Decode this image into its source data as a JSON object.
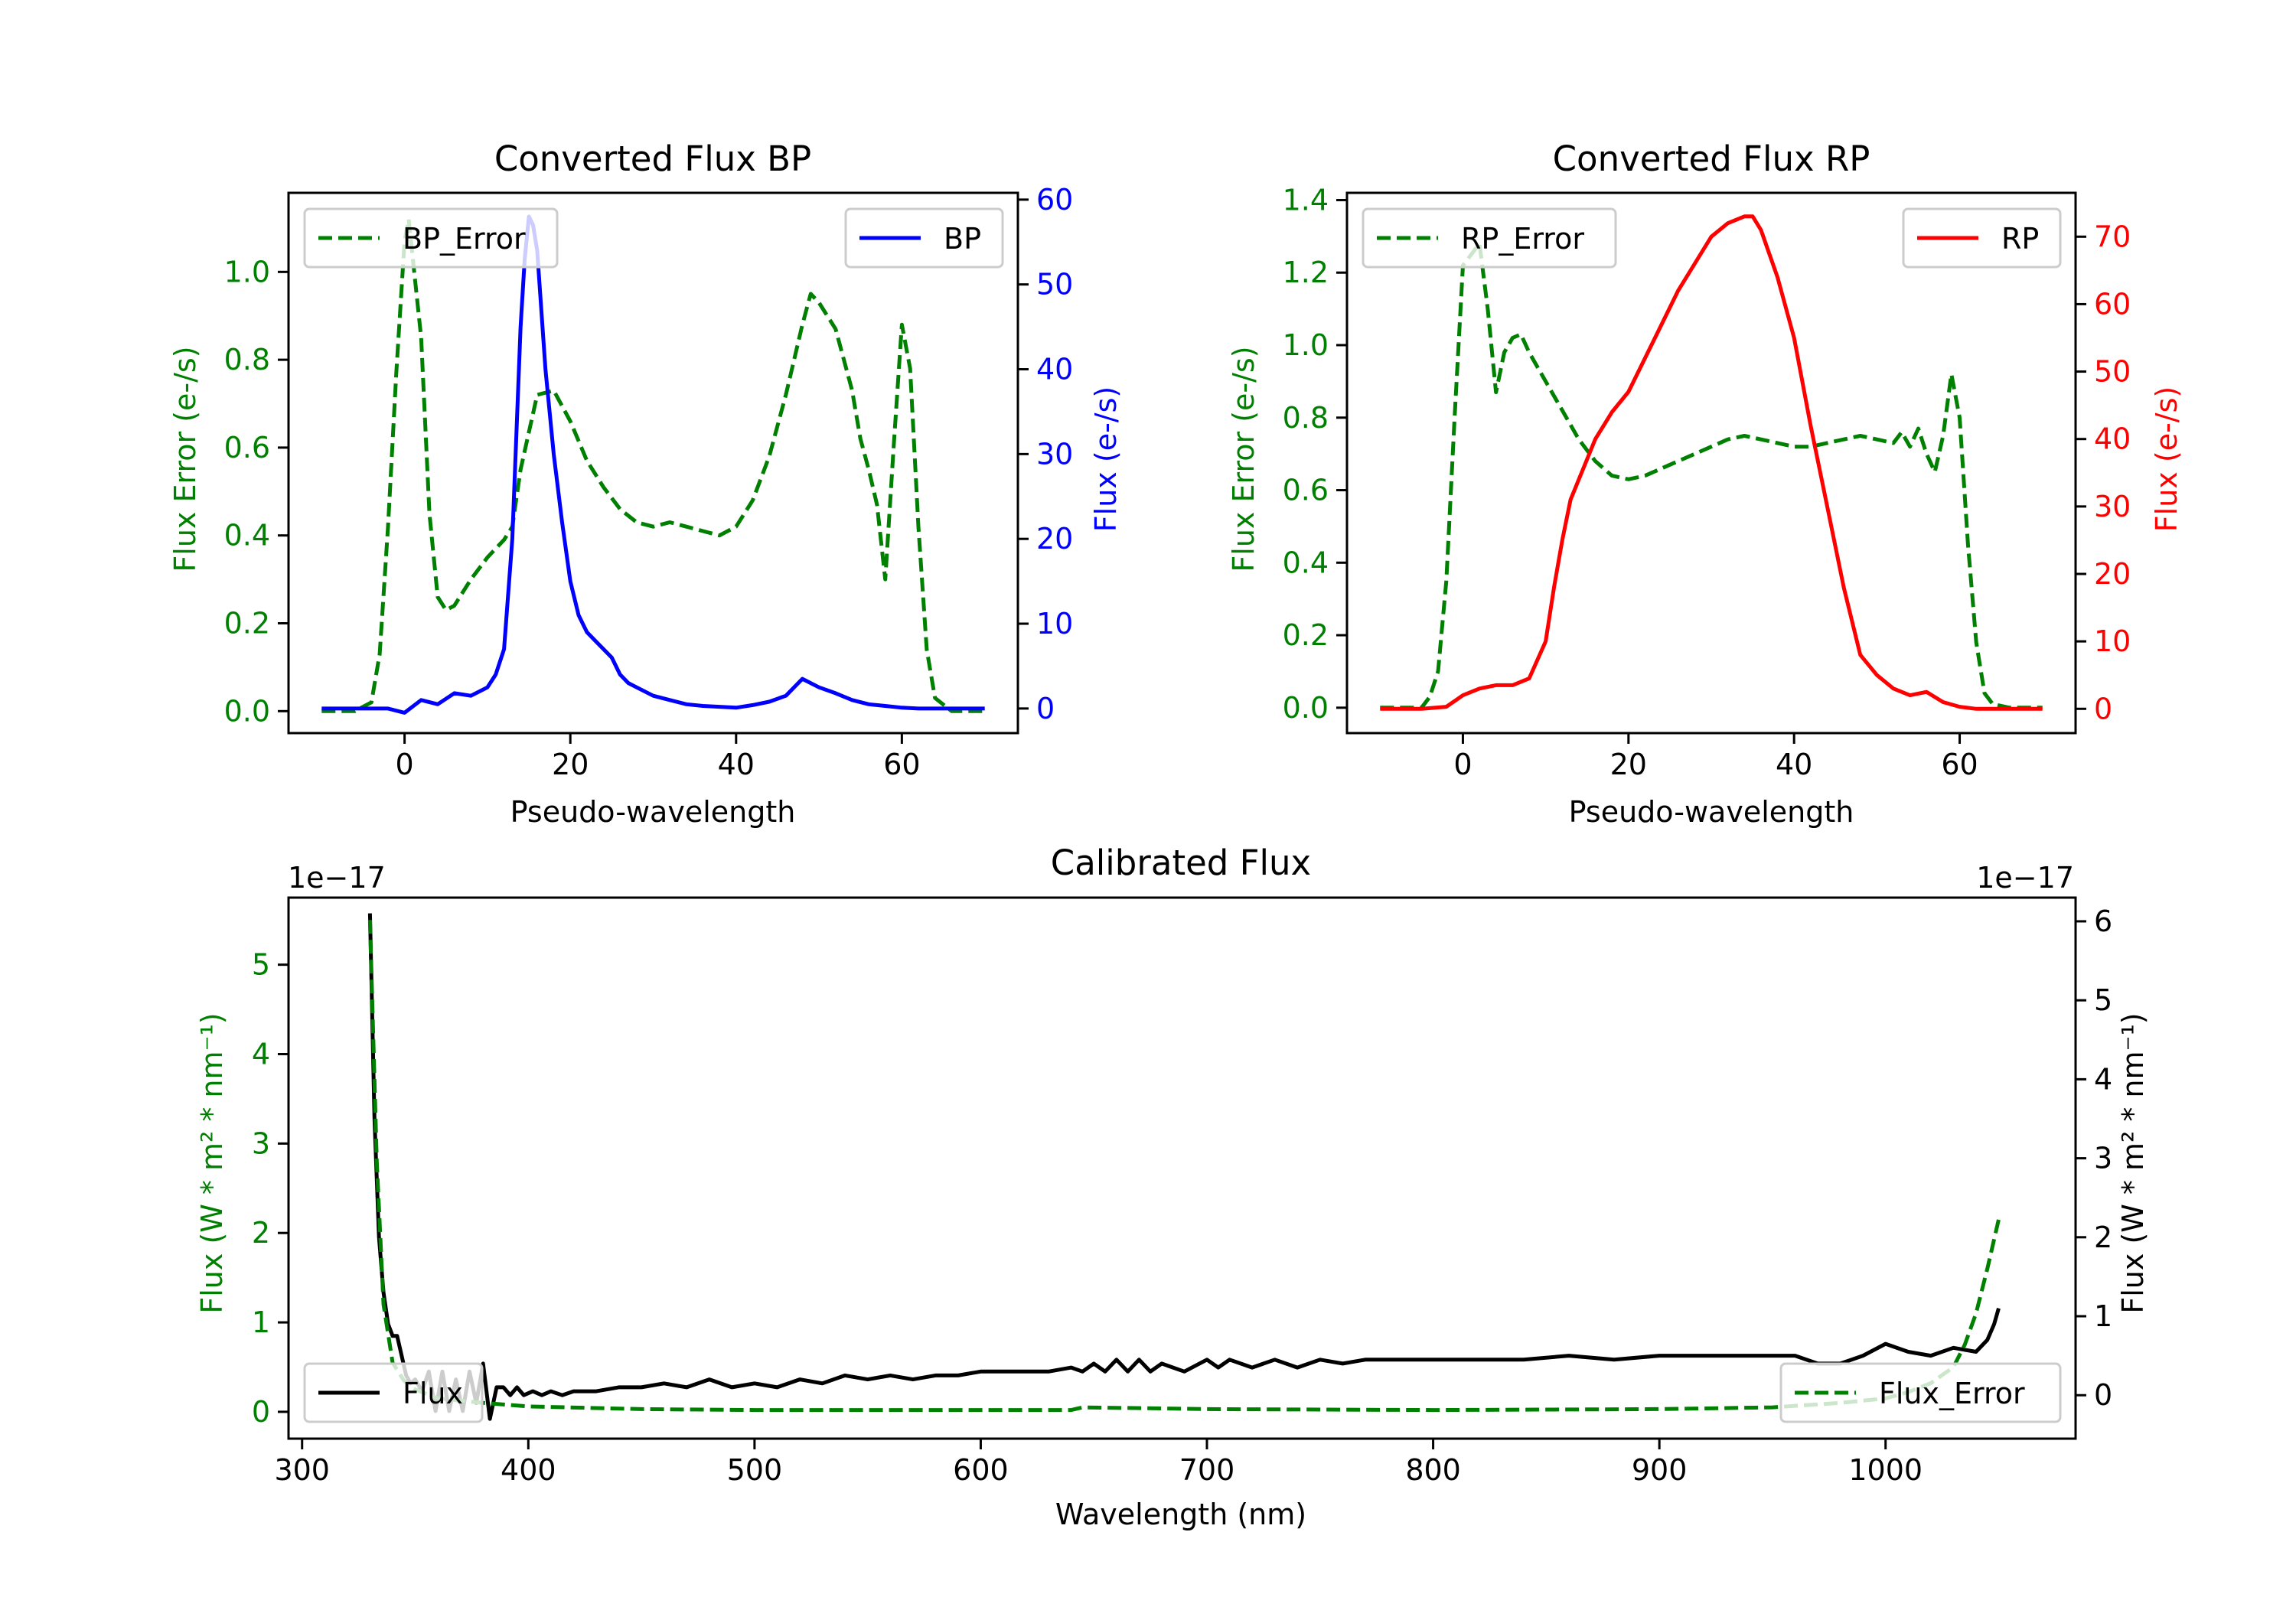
{
  "chart_data": [
    {
      "id": "bp",
      "type": "line",
      "title": "Converted Flux BP",
      "xlabel": "Pseudo-wavelength",
      "ylabel_left": "Flux Error (e-/s)",
      "ylabel_right": "Flux (e-/s)",
      "xlim": [
        -14,
        74
      ],
      "ylim_left": [
        -0.05,
        1.18
      ],
      "ylim_right": [
        -2.9,
        60.8
      ],
      "xticks": [
        0,
        20,
        40,
        60
      ],
      "yticks_left": [
        "0.0",
        "0.2",
        "0.4",
        "0.6",
        "0.8",
        "1.0"
      ],
      "yticks_right": [
        "0",
        "10",
        "20",
        "30",
        "40",
        "50",
        "60"
      ],
      "colors": {
        "left": "#008000",
        "right": "#0000ff"
      },
      "legend": [
        {
          "label": "BP_Error",
          "position": "upper left"
        },
        {
          "label": "BP",
          "position": "upper right"
        }
      ],
      "series": [
        {
          "name": "BP_Error",
          "axis": "left",
          "style": "dashed",
          "color": "#008000",
          "x": [
            -10,
            -6,
            -4,
            -3,
            -2,
            -1,
            0,
            0.5,
            1,
            2,
            3,
            4,
            5,
            6,
            8,
            10,
            12,
            13,
            14,
            16,
            18,
            20,
            22,
            24,
            26,
            28,
            30,
            32,
            34,
            36,
            38,
            40,
            42,
            44,
            46,
            48,
            49,
            50,
            52,
            54,
            55,
            56,
            57,
            58,
            59,
            60,
            61,
            62,
            63,
            64,
            66,
            70
          ],
          "values": [
            0.0,
            0.0,
            0.02,
            0.13,
            0.42,
            0.77,
            1.07,
            1.12,
            1.03,
            0.85,
            0.45,
            0.26,
            0.23,
            0.24,
            0.3,
            0.35,
            0.39,
            0.42,
            0.55,
            0.72,
            0.73,
            0.66,
            0.57,
            0.51,
            0.46,
            0.43,
            0.42,
            0.43,
            0.42,
            0.41,
            0.4,
            0.42,
            0.48,
            0.58,
            0.72,
            0.88,
            0.95,
            0.93,
            0.87,
            0.73,
            0.62,
            0.55,
            0.47,
            0.3,
            0.6,
            0.88,
            0.78,
            0.42,
            0.14,
            0.03,
            0.0,
            0.0
          ]
        },
        {
          "name": "BP",
          "axis": "right",
          "style": "solid",
          "color": "#0000ff",
          "x": [
            -10,
            -6,
            -2,
            0,
            2,
            4,
            6,
            8,
            10,
            11,
            12,
            13,
            14,
            14.5,
            15,
            15.5,
            16,
            17,
            18,
            19,
            20,
            21,
            22,
            23,
            24,
            25,
            26,
            27,
            28,
            30,
            32,
            34,
            36,
            38,
            40,
            42,
            44,
            46,
            48,
            50,
            52,
            54,
            56,
            58,
            60,
            62,
            64,
            66,
            70
          ],
          "values": [
            0,
            0,
            0,
            -0.5,
            1,
            0.5,
            1.8,
            1.5,
            2.5,
            4,
            7,
            20,
            45,
            53,
            58,
            57,
            54,
            40,
            30,
            22,
            15,
            11,
            9,
            8,
            7,
            6,
            4,
            3,
            2.5,
            1.5,
            1,
            0.5,
            0.3,
            0.2,
            0.1,
            0.4,
            0.8,
            1.5,
            3.5,
            2.5,
            1.8,
            1,
            0.5,
            0.3,
            0.1,
            0,
            0,
            0,
            0
          ]
        }
      ]
    },
    {
      "id": "rp",
      "type": "line",
      "title": "Converted Flux RP",
      "xlabel": "Pseudo-wavelength",
      "ylabel_left": "Flux Error (e-/s)",
      "ylabel_right": "Flux (e-/s)",
      "xlim": [
        -14,
        74
      ],
      "ylim_left": [
        -0.07,
        1.42
      ],
      "ylim_right": [
        -3.6,
        76.5
      ],
      "xticks": [
        0,
        20,
        40,
        60
      ],
      "yticks_left": [
        "0.0",
        "0.2",
        "0.4",
        "0.6",
        "0.8",
        "1.0",
        "1.2",
        "1.4"
      ],
      "yticks_right": [
        "0",
        "10",
        "20",
        "30",
        "40",
        "50",
        "60",
        "70"
      ],
      "colors": {
        "left": "#008000",
        "right": "#ff0000"
      },
      "legend": [
        {
          "label": "RP_Error",
          "position": "upper left"
        },
        {
          "label": "RP",
          "position": "upper right"
        }
      ],
      "series": [
        {
          "name": "RP_Error",
          "axis": "left",
          "style": "dashed",
          "color": "#008000",
          "x": [
            -10,
            -5,
            -4,
            -3,
            -2,
            -1,
            0,
            1,
            2,
            3,
            4,
            5,
            6,
            7,
            8,
            10,
            12,
            14,
            16,
            18,
            20,
            22,
            24,
            26,
            28,
            30,
            32,
            34,
            36,
            38,
            40,
            42,
            44,
            46,
            48,
            50,
            52,
            53,
            54,
            55,
            56,
            57,
            58,
            59,
            60,
            61,
            62,
            63,
            64,
            66,
            70
          ],
          "values": [
            0.0,
            0.0,
            0.03,
            0.1,
            0.35,
            0.8,
            1.22,
            1.25,
            1.28,
            1.1,
            0.87,
            0.98,
            1.02,
            1.03,
            0.98,
            0.9,
            0.82,
            0.74,
            0.68,
            0.64,
            0.63,
            0.64,
            0.66,
            0.68,
            0.7,
            0.72,
            0.74,
            0.75,
            0.74,
            0.73,
            0.72,
            0.72,
            0.73,
            0.74,
            0.75,
            0.74,
            0.73,
            0.76,
            0.72,
            0.77,
            0.7,
            0.65,
            0.75,
            0.92,
            0.8,
            0.45,
            0.18,
            0.04,
            0.01,
            0.0,
            0.0
          ]
        },
        {
          "name": "RP",
          "axis": "right",
          "style": "solid",
          "color": "#ff0000",
          "x": [
            -10,
            -5,
            -2,
            0,
            2,
            4,
            6,
            8,
            10,
            11,
            12,
            13,
            14,
            15,
            16,
            17,
            18,
            20,
            22,
            24,
            26,
            28,
            30,
            32,
            34,
            35,
            36,
            38,
            40,
            42,
            44,
            46,
            48,
            50,
            52,
            54,
            56,
            58,
            60,
            62,
            64,
            66,
            70
          ],
          "values": [
            0,
            0,
            0.3,
            2,
            3,
            3.5,
            3.5,
            4.5,
            10,
            18,
            25,
            31,
            34,
            37,
            40,
            42,
            44,
            47,
            52,
            57,
            62,
            66,
            70,
            72,
            73,
            73,
            71,
            64,
            55,
            42,
            30,
            18,
            8,
            5,
            3,
            2,
            2.5,
            1,
            0.3,
            0,
            0,
            0,
            0
          ]
        }
      ]
    },
    {
      "id": "cal",
      "type": "line",
      "title": "Calibrated Flux",
      "xlabel": "Wavelength (nm)",
      "ylabel_left": "Flux (W * m² * nm⁻¹)",
      "ylabel_right": "Flux (W * m² * nm⁻¹)",
      "offset_left": "1e−17",
      "offset_right": "1e−17",
      "xlim": [
        294,
        1084
      ],
      "ylim_left": [
        -0.3,
        5.75
      ],
      "ylim_right": [
        -0.55,
        6.3
      ],
      "xticks": [
        300,
        400,
        500,
        600,
        700,
        800,
        900,
        1000
      ],
      "yticks_left": [
        "0",
        "1",
        "2",
        "3",
        "4",
        "5"
      ],
      "yticks_right": [
        "0",
        "1",
        "2",
        "3",
        "4",
        "5",
        "6"
      ],
      "colors": {
        "left": "#008000",
        "right": "#000000"
      },
      "legend": [
        {
          "label": "Flux",
          "position": "lower left"
        },
        {
          "label": "Flux_Error",
          "position": "lower right"
        }
      ],
      "series": [
        {
          "name": "Flux",
          "axis": "right",
          "style": "solid",
          "color": "#000000",
          "x": [
            330,
            332,
            334,
            336,
            338,
            340,
            342,
            344,
            346,
            348,
            350,
            353,
            356,
            359,
            362,
            365,
            368,
            371,
            374,
            377,
            380,
            383,
            386,
            389,
            392,
            395,
            398,
            402,
            406,
            410,
            415,
            420,
            430,
            440,
            450,
            460,
            470,
            480,
            490,
            500,
            510,
            520,
            530,
            540,
            550,
            560,
            570,
            580,
            590,
            600,
            610,
            620,
            630,
            640,
            645,
            650,
            655,
            660,
            665,
            670,
            675,
            680,
            690,
            700,
            705,
            710,
            720,
            730,
            740,
            750,
            760,
            770,
            780,
            790,
            800,
            820,
            840,
            860,
            880,
            900,
            920,
            940,
            960,
            970,
            980,
            990,
            1000,
            1010,
            1020,
            1030,
            1040,
            1045,
            1048,
            1050
          ],
          "values": [
            6.1,
            3.5,
            2.0,
            1.3,
            0.9,
            0.75,
            0.75,
            0.5,
            0.25,
            0.15,
            0.2,
            0.05,
            0.3,
            -0.2,
            0.3,
            -0.2,
            0.2,
            -0.2,
            0.3,
            -0.1,
            0.4,
            -0.3,
            0.1,
            0.1,
            0.0,
            0.1,
            0.0,
            0.05,
            0.0,
            0.05,
            0.0,
            0.05,
            0.05,
            0.1,
            0.1,
            0.15,
            0.1,
            0.2,
            0.1,
            0.15,
            0.1,
            0.2,
            0.15,
            0.25,
            0.2,
            0.25,
            0.2,
            0.25,
            0.25,
            0.3,
            0.3,
            0.3,
            0.3,
            0.35,
            0.3,
            0.4,
            0.3,
            0.45,
            0.3,
            0.45,
            0.3,
            0.4,
            0.3,
            0.45,
            0.35,
            0.45,
            0.35,
            0.45,
            0.35,
            0.45,
            0.4,
            0.45,
            0.45,
            0.45,
            0.45,
            0.45,
            0.45,
            0.5,
            0.45,
            0.5,
            0.5,
            0.5,
            0.5,
            0.4,
            0.4,
            0.5,
            0.65,
            0.55,
            0.5,
            0.6,
            0.55,
            0.7,
            0.9,
            1.1
          ]
        },
        {
          "name": "Flux_Error",
          "axis": "left",
          "style": "dashed",
          "color": "#008000",
          "x": [
            330,
            333,
            336,
            340,
            345,
            350,
            360,
            380,
            390,
            400,
            450,
            500,
            550,
            600,
            640,
            645,
            700,
            800,
            900,
            950,
            980,
            1000,
            1010,
            1020,
            1030,
            1035,
            1040,
            1045,
            1050
          ],
          "values": [
            5.5,
            2.8,
            1.2,
            0.55,
            0.35,
            0.25,
            0.15,
            0.1,
            0.08,
            0.06,
            0.03,
            0.02,
            0.02,
            0.02,
            0.02,
            0.05,
            0.03,
            0.02,
            0.03,
            0.05,
            0.1,
            0.15,
            0.22,
            0.32,
            0.5,
            0.75,
            1.1,
            1.6,
            2.15
          ]
        }
      ]
    }
  ]
}
